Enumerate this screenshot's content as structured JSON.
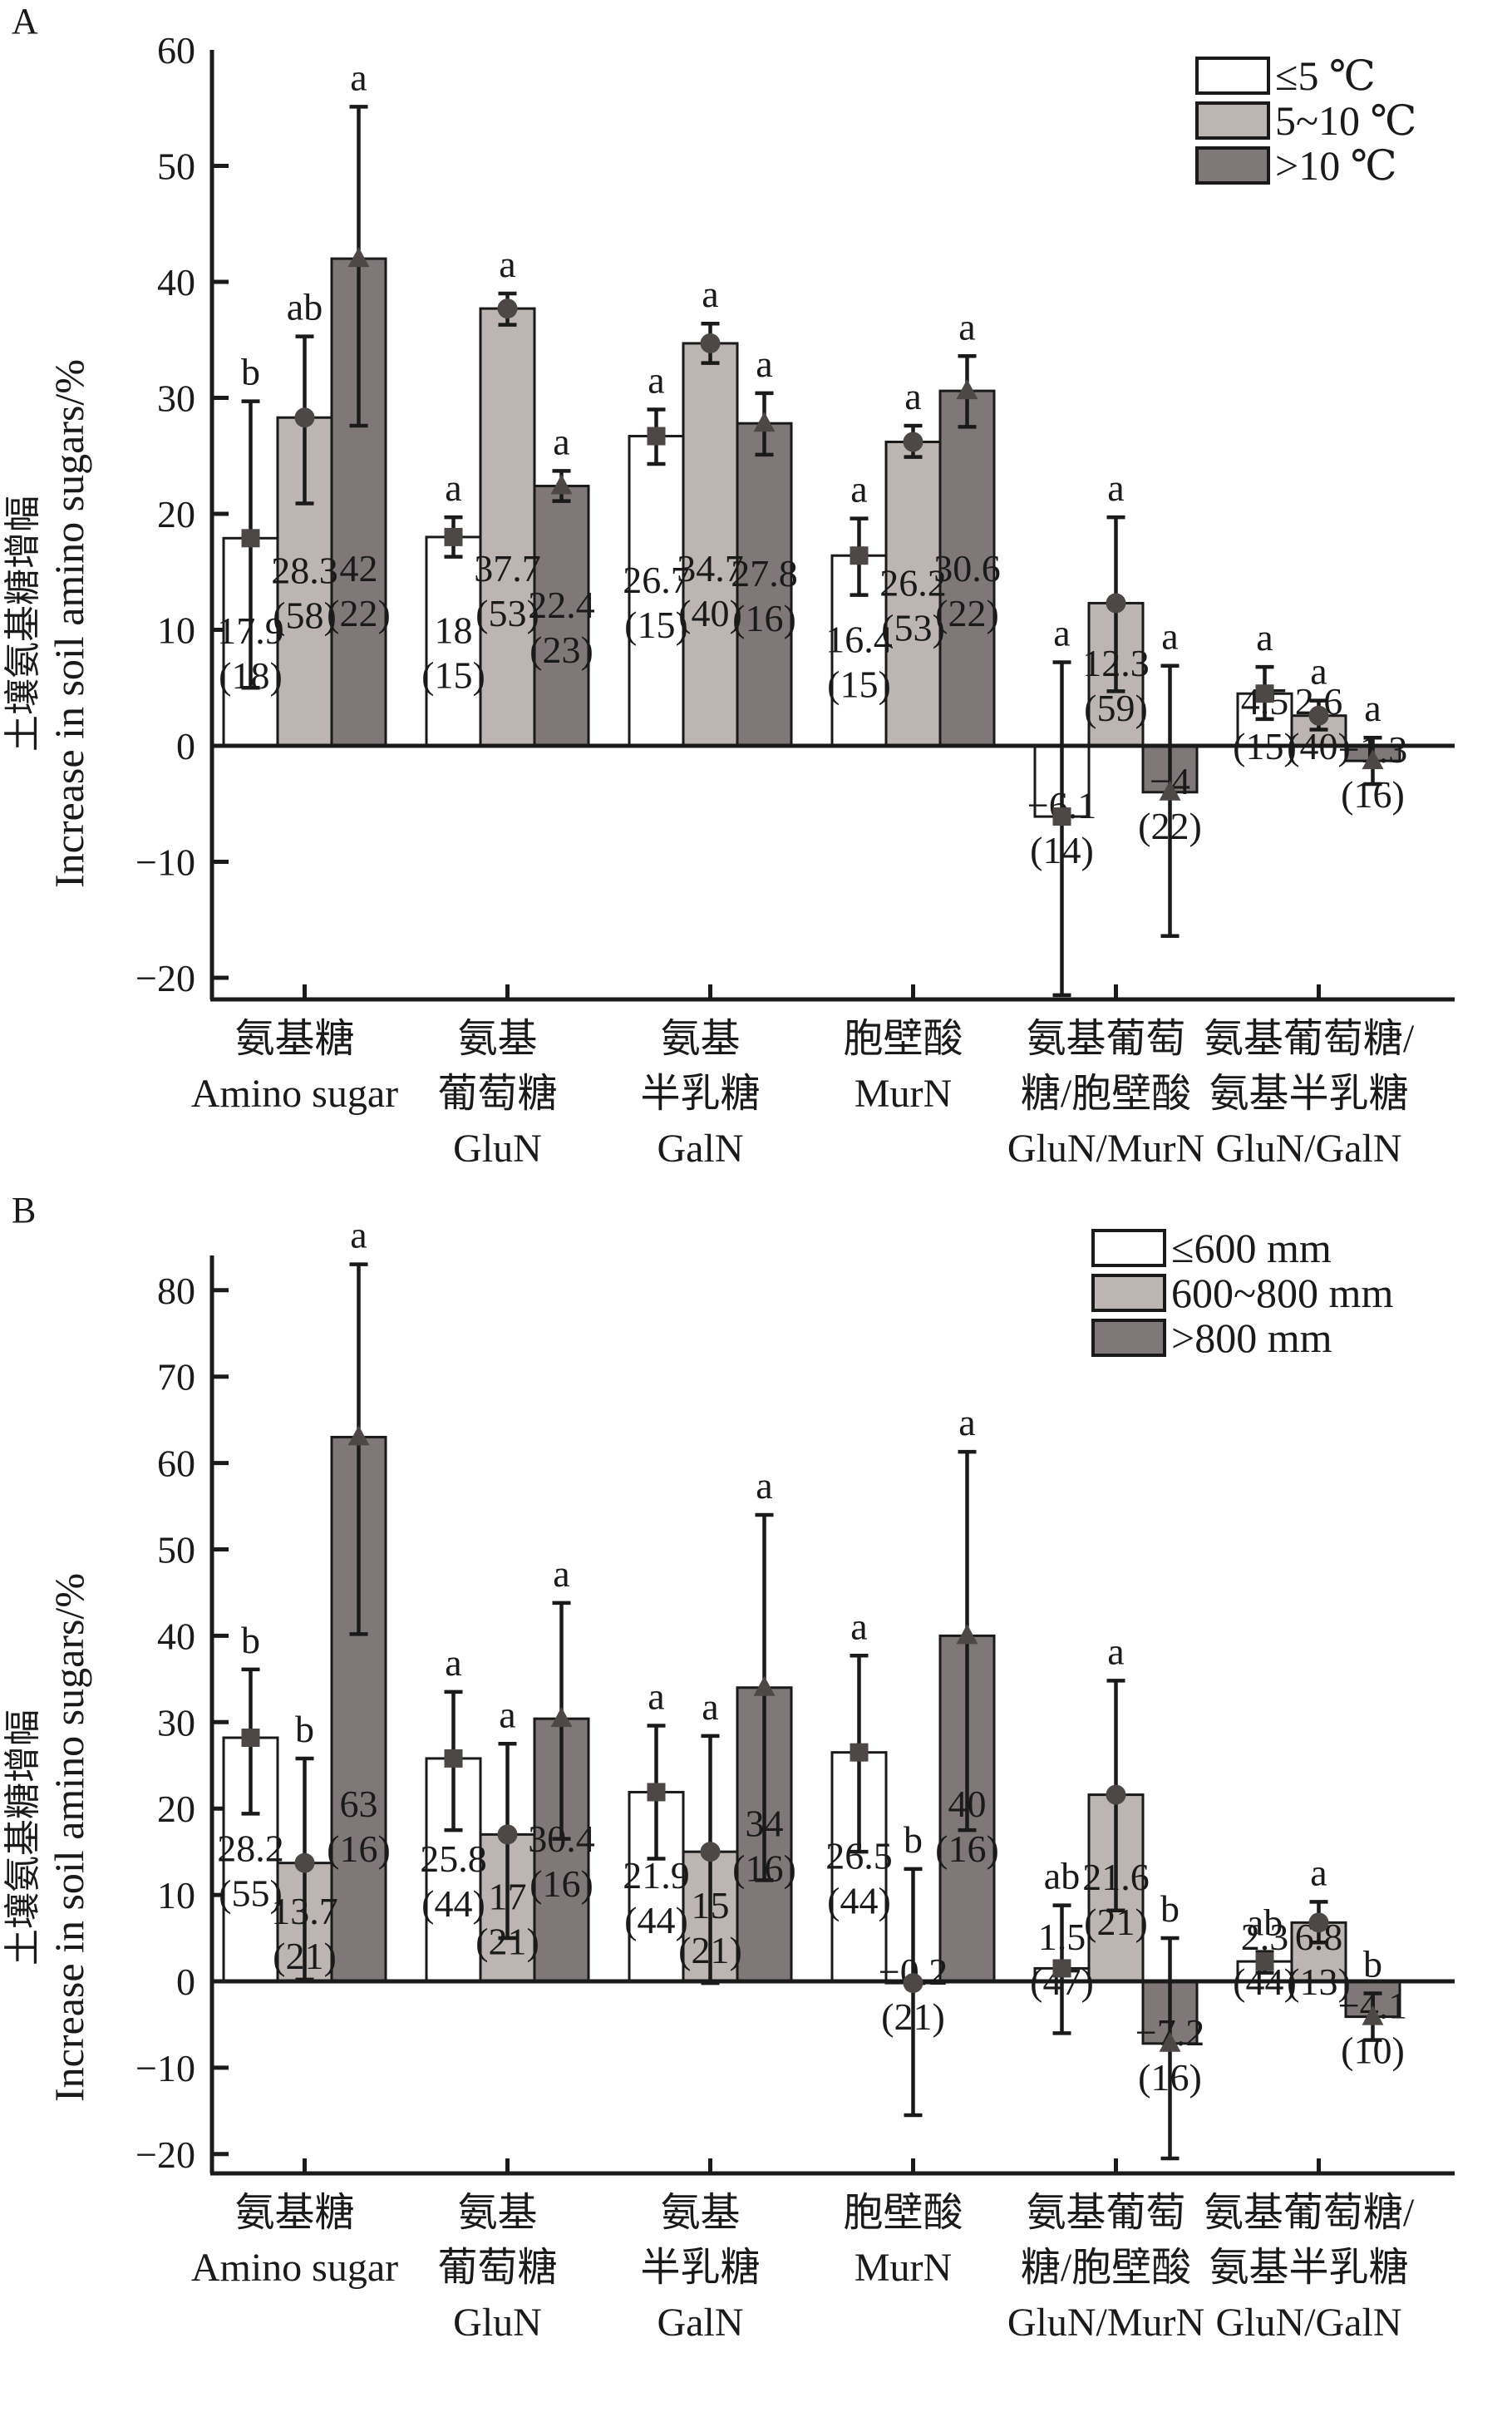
{
  "colors": {
    "low": "#ffffff",
    "mid": "#bdb5b2",
    "high": "#807878",
    "marker": "#4d4746",
    "ink": "#1a1a1a"
  },
  "chart_data": [
    {
      "type": "bar",
      "panel_label": "A",
      "ylabel_cn": "土壤氨基糖增幅",
      "ylabel_en": "Increase in soil amino sugars/%",
      "ylim": [
        -22,
        60
      ],
      "yticks": [
        -20,
        -10,
        0,
        10,
        20,
        30,
        40,
        50,
        60
      ],
      "yticks_text": [
        "−20",
        "−10",
        "0",
        "10",
        "20",
        "30",
        "40",
        "50",
        "60"
      ],
      "legend_position": "top-right",
      "categories": [
        {
          "cn": [
            "氨基糖"
          ],
          "en": [
            "Amino sugar"
          ]
        },
        {
          "cn": [
            "氨基",
            "葡萄糖"
          ],
          "en": [
            "GluN"
          ]
        },
        {
          "cn": [
            "氨基",
            "半乳糖"
          ],
          "en": [
            "GalN"
          ]
        },
        {
          "cn": [
            "胞壁酸"
          ],
          "en": [
            "MurN"
          ]
        },
        {
          "cn": [
            "氨基葡萄",
            "糖/胞壁酸"
          ],
          "en": [
            "GluN/MurN"
          ]
        },
        {
          "cn": [
            "氨基葡萄糖/",
            "氨基半乳糖"
          ],
          "en": [
            "GluN/GalN"
          ]
        }
      ],
      "series": [
        {
          "name": "≤5 ℃",
          "color_key": "low",
          "marker": "square",
          "values": [
            17.9,
            18,
            26.7,
            16.4,
            -6.1,
            4.5
          ],
          "labels": [
            "17.9",
            "18",
            "26.7",
            "16.4",
            "−6.1",
            "4.5"
          ],
          "n": [
            "(18)",
            "(15)",
            "(15)",
            "(15)",
            "(14)",
            "(15)"
          ],
          "err_low": [
            5,
            16.3,
            24.3,
            13.0,
            -21.5,
            2.3
          ],
          "err_high": [
            29.7,
            19.7,
            29.0,
            19.6,
            7.2,
            6.8
          ],
          "significance": [
            "b",
            "a",
            "a",
            "a",
            "a",
            "a"
          ]
        },
        {
          "name": "5~10 ℃",
          "color_key": "mid",
          "marker": "circle",
          "values": [
            28.3,
            37.7,
            34.7,
            26.2,
            12.3,
            2.6
          ],
          "labels": [
            "28.3",
            "37.7",
            "34.7",
            "26.2",
            "12.3",
            "2.6"
          ],
          "n": [
            "(58)",
            "(53)",
            "(40)",
            "(53)",
            "(59)",
            "(40)"
          ],
          "err_low": [
            20.9,
            36.3,
            33.0,
            24.9,
            4.7,
            1.4
          ],
          "err_high": [
            35.3,
            39.0,
            36.4,
            27.6,
            19.7,
            3.9
          ],
          "significance": [
            "ab",
            "a",
            "a",
            "a",
            "a",
            "a"
          ]
        },
        {
          "name": ">10 ℃",
          "color_key": "high",
          "marker": "triangle",
          "values": [
            42,
            22.4,
            27.8,
            30.6,
            -4,
            -1.3
          ],
          "labels": [
            "42",
            "22.4",
            "27.8",
            "30.6",
            "−4",
            "−1.3"
          ],
          "n": [
            "(22)",
            "(23)",
            "(16)",
            "(22)",
            "(22)",
            "(16)"
          ],
          "err_low": [
            27.6,
            21.1,
            25.1,
            27.5,
            -16.4,
            -3.3
          ],
          "err_high": [
            55.1,
            23.7,
            30.4,
            33.6,
            6.9,
            0.7
          ],
          "significance": [
            "a",
            "a",
            "a",
            "a",
            "a",
            "a"
          ]
        }
      ]
    },
    {
      "type": "bar",
      "panel_label": "B",
      "ylabel_cn": "土壤氨基糖增幅",
      "ylabel_en": "Increase in soil amino sugars/%",
      "ylim": [
        -22,
        88
      ],
      "yticks": [
        -20,
        -10,
        0,
        10,
        20,
        30,
        40,
        50,
        60,
        70,
        80
      ],
      "yticks_text": [
        "−20",
        "−10",
        "0",
        "10",
        "20",
        "30",
        "40",
        "50",
        "60",
        "70",
        "80"
      ],
      "legend_position": "top-right",
      "categories": [
        {
          "cn": [
            "氨基糖"
          ],
          "en": [
            "Amino sugar"
          ]
        },
        {
          "cn": [
            "氨基",
            "葡萄糖"
          ],
          "en": [
            "GluN"
          ]
        },
        {
          "cn": [
            "氨基",
            "半乳糖"
          ],
          "en": [
            "GalN"
          ]
        },
        {
          "cn": [
            "胞壁酸"
          ],
          "en": [
            "MurN"
          ]
        },
        {
          "cn": [
            "氨基葡萄",
            "糖/胞壁酸"
          ],
          "en": [
            "GluN/MurN"
          ]
        },
        {
          "cn": [
            "氨基葡萄糖/",
            "氨基半乳糖"
          ],
          "en": [
            "GluN/GalN"
          ]
        }
      ],
      "series": [
        {
          "name": "≤600 mm",
          "color_key": "low",
          "marker": "square",
          "values": [
            28.2,
            25.8,
            21.9,
            26.5,
            1.5,
            2.3
          ],
          "labels": [
            "28.2",
            "25.8",
            "21.9",
            "26.5",
            "1.5",
            "2.3"
          ],
          "n": [
            "(55)",
            "(44)",
            "(44)",
            "(44)",
            "(47)",
            "(44)"
          ],
          "err_low": [
            19.4,
            17.5,
            14.2,
            15.0,
            -6.0,
            1.0
          ],
          "err_high": [
            36.1,
            33.5,
            29.6,
            37.7,
            8.8,
            3.4
          ],
          "significance": [
            "b",
            "a",
            "a",
            "a",
            "ab",
            "ab"
          ]
        },
        {
          "name": "600~800 mm",
          "color_key": "mid",
          "marker": "circle",
          "values": [
            13.7,
            17,
            15,
            -0.2,
            21.6,
            6.8
          ],
          "labels": [
            "13.7",
            "17",
            "15",
            "−0.2",
            "21.6",
            "6.8"
          ],
          "n": [
            "(21)",
            "(21)",
            "(21)",
            "(21)",
            "(21)",
            "(13)"
          ],
          "err_low": [
            0.2,
            5.0,
            -0.2,
            -15.5,
            8.2,
            4.5
          ],
          "err_high": [
            25.8,
            27.5,
            28.4,
            13.0,
            34.8,
            9.2
          ],
          "significance": [
            "b",
            "a",
            "a",
            "b",
            "a",
            "a"
          ]
        },
        {
          "name": ">800 mm",
          "color_key": "high",
          "marker": "triangle",
          "values": [
            63,
            30.4,
            34,
            40,
            -7.2,
            -4.1
          ],
          "labels": [
            "63",
            "30.4",
            "34",
            "40",
            "−7.2",
            "−4.1"
          ],
          "n": [
            "(16)",
            "(16)",
            "(16)",
            "(16)",
            "(16)",
            "(10)"
          ],
          "err_low": [
            40.2,
            16.5,
            11.7,
            17.5,
            -20.5,
            -6.8
          ],
          "err_high": [
            83,
            43.8,
            54,
            61.3,
            5.0,
            -1.4
          ],
          "significance": [
            "a",
            "a",
            "a",
            "a",
            "b",
            "b"
          ]
        }
      ]
    }
  ]
}
